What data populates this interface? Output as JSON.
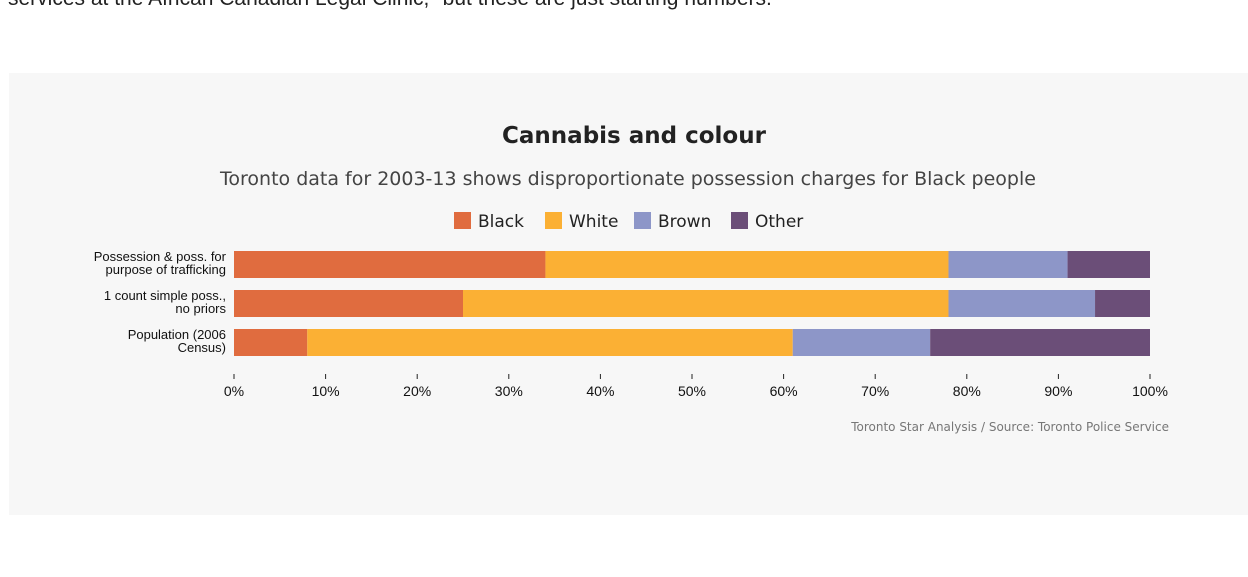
{
  "article": {
    "top_text": "services at the African Canadian Legal Clinic, \"but these are just starting numbers.\""
  },
  "chart_data": {
    "type": "bar",
    "orientation": "horizontal",
    "stacked": true,
    "title": "Cannabis and colour",
    "subtitle": "Toronto data for 2003-13 shows disproportionate possession charges for Black people",
    "source": "Toronto Star Analysis / Source: Toronto Police Service",
    "legend_placement": "top-center",
    "grid": false,
    "categories": [
      [
        "Possession & poss. for",
        "purpose of trafficking"
      ],
      [
        "1 count simple poss.,",
        "no priors"
      ],
      [
        "Population (2006",
        "Census)"
      ]
    ],
    "series": [
      {
        "name": "Black",
        "color": "#e06c3f",
        "values": [
          34,
          25,
          8
        ]
      },
      {
        "name": "White",
        "color": "#fbb034",
        "values": [
          44,
          53,
          53
        ]
      },
      {
        "name": "Brown",
        "color": "#8d96c8",
        "values": [
          13,
          16,
          15
        ]
      },
      {
        "name": "Other",
        "color": "#6b4e78",
        "values": [
          9,
          6,
          24
        ]
      }
    ],
    "xlim": [
      0,
      100
    ],
    "xticks": [
      "0%",
      "10%",
      "20%",
      "30%",
      "40%",
      "50%",
      "60%",
      "70%",
      "80%",
      "90%",
      "100%"
    ]
  }
}
